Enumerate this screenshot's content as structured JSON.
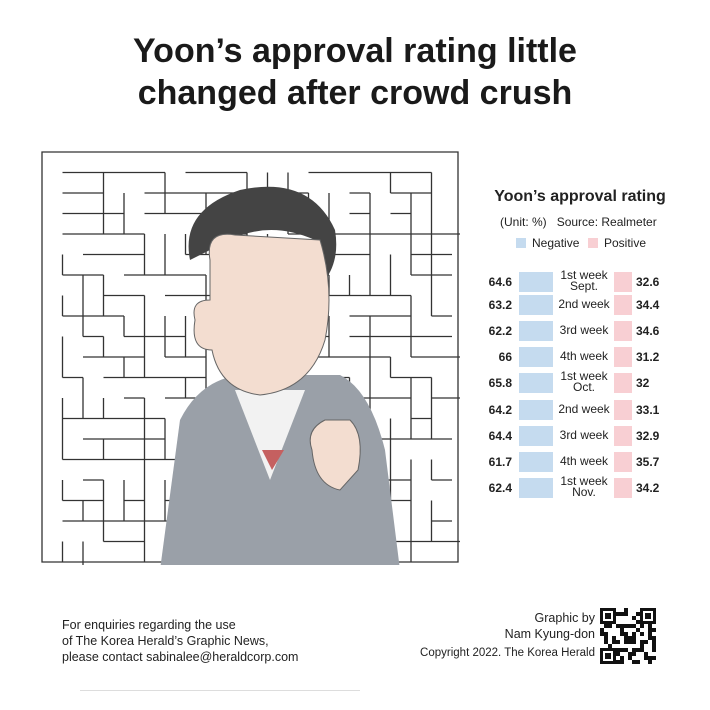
{
  "title_lines": [
    "Yoon’s approval rating little",
    "changed after crowd crush"
  ],
  "chart_data": {
    "type": "bar",
    "title": "Yoon’s approval rating",
    "unit": "(Unit: %)",
    "source": "Source: Realmeter",
    "categories": [
      "1st week Sept.",
      "2nd week",
      "3rd week",
      "4th week",
      "1st week Oct.",
      "2nd week",
      "3rd week",
      "4th week",
      "1st week Nov."
    ],
    "category_lines": [
      [
        "1st week",
        "Sept."
      ],
      [
        "2nd week"
      ],
      [
        "3rd week"
      ],
      [
        "4th week"
      ],
      [
        "1st week",
        "Oct."
      ],
      [
        "2nd week"
      ],
      [
        "3rd week"
      ],
      [
        "4th week"
      ],
      [
        "1st week",
        "Nov."
      ]
    ],
    "series": [
      {
        "name": "Negative",
        "color": "#c5dbef",
        "values": [
          64.6,
          63.2,
          62.2,
          66,
          65.8,
          64.2,
          64.4,
          61.7,
          62.4
        ],
        "labels": [
          "64.6",
          "63.2",
          "62.2",
          "66",
          "65.8",
          "64.2",
          "64.4",
          "61.7",
          "62.4"
        ]
      },
      {
        "name": "Positive",
        "color": "#f8cfd3",
        "values": [
          32.6,
          34.4,
          34.6,
          31.2,
          32,
          33.1,
          32.9,
          35.7,
          34.2
        ],
        "labels": [
          "32.6",
          "34.4",
          "34.6",
          "31.2",
          "32",
          "33.1",
          "32.9",
          "35.7",
          "34.2"
        ]
      }
    ]
  },
  "footer": {
    "enquiry_lines": [
      "For enquiries regarding the use",
      "of The Korea Herald’s Graphic News,",
      "please contact sabinalee@heraldcorp.com"
    ],
    "credit_lines": [
      "Graphic by",
      "Nam Kyung-don"
    ],
    "copyright": "Copyright 2022. The Korea Herald"
  }
}
